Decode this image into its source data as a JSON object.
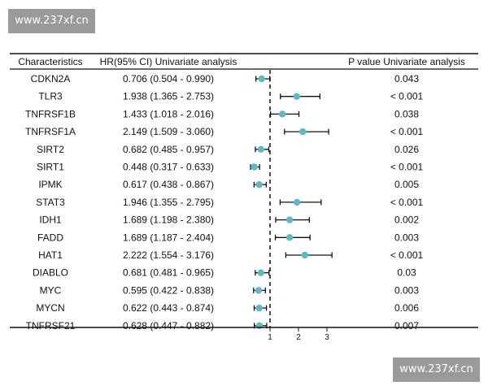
{
  "watermarks": {
    "top": "www.237xf.cn",
    "bottom": "www.237xf.cn"
  },
  "chart_data": {
    "type": "forest",
    "headers": {
      "characteristics": "Characteristics",
      "hr": "HR(95% CI) Univariate analysis",
      "p": "P value Univariate analysis"
    },
    "rows": [
      {
        "name": "CDKN2A",
        "hr_text": "0.706 (0.504 - 0.990)",
        "hr": 0.706,
        "lo": 0.504,
        "hi": 0.99,
        "p": "0.043"
      },
      {
        "name": "TLR3",
        "hr_text": "1.938 (1.365 - 2.753)",
        "hr": 1.938,
        "lo": 1.365,
        "hi": 2.753,
        "p": "< 0.001"
      },
      {
        "name": "TNFRSF1B",
        "hr_text": "1.433 (1.018 - 2.016)",
        "hr": 1.433,
        "lo": 1.018,
        "hi": 2.016,
        "p": "0.038"
      },
      {
        "name": "TNFRSF1A",
        "hr_text": "2.149 (1.509 - 3.060)",
        "hr": 2.149,
        "lo": 1.509,
        "hi": 3.06,
        "p": "< 0.001"
      },
      {
        "name": "SIRT2",
        "hr_text": "0.682 (0.485 - 0.957)",
        "hr": 0.682,
        "lo": 0.485,
        "hi": 0.957,
        "p": "0.026"
      },
      {
        "name": "SIRT1",
        "hr_text": "0.448 (0.317 - 0.633)",
        "hr": 0.448,
        "lo": 0.317,
        "hi": 0.633,
        "p": "< 0.001"
      },
      {
        "name": "IPMK",
        "hr_text": "0.617 (0.438 - 0.867)",
        "hr": 0.617,
        "lo": 0.438,
        "hi": 0.867,
        "p": "0.005"
      },
      {
        "name": "STAT3",
        "hr_text": "1.946 (1.355 - 2.795)",
        "hr": 1.946,
        "lo": 1.355,
        "hi": 2.795,
        "p": "< 0.001"
      },
      {
        "name": "IDH1",
        "hr_text": "1.689 (1.198 - 2.380)",
        "hr": 1.689,
        "lo": 1.198,
        "hi": 2.38,
        "p": "0.002"
      },
      {
        "name": "FADD",
        "hr_text": "1.689 (1.187 - 2.404)",
        "hr": 1.689,
        "lo": 1.187,
        "hi": 2.404,
        "p": "0.003"
      },
      {
        "name": "HAT1",
        "hr_text": "2.222 (1.554 - 3.176)",
        "hr": 2.222,
        "lo": 1.554,
        "hi": 3.176,
        "p": "< 0.001"
      },
      {
        "name": "DIABLO",
        "hr_text": "0.681 (0.481 - 0.965)",
        "hr": 0.681,
        "lo": 0.481,
        "hi": 0.965,
        "p": "0.03"
      },
      {
        "name": "MYC",
        "hr_text": "0.595 (0.422 - 0.838)",
        "hr": 0.595,
        "lo": 0.422,
        "hi": 0.838,
        "p": "0.003"
      },
      {
        "name": "MYCN",
        "hr_text": "0.622 (0.443 - 0.874)",
        "hr": 0.622,
        "lo": 0.443,
        "hi": 0.874,
        "p": "0.006"
      },
      {
        "name": "TNFRSF21",
        "hr_text": "0.628 (0.447 - 0.882)",
        "hr": 0.628,
        "lo": 0.447,
        "hi": 0.882,
        "p": "0.007"
      }
    ],
    "xaxis": {
      "ticks": [
        1,
        2,
        3
      ],
      "tick_labels": [
        "1",
        "2",
        "3"
      ],
      "reference_line": 1
    },
    "colors": {
      "point": "#5fb8c4",
      "line": "#111111"
    }
  }
}
